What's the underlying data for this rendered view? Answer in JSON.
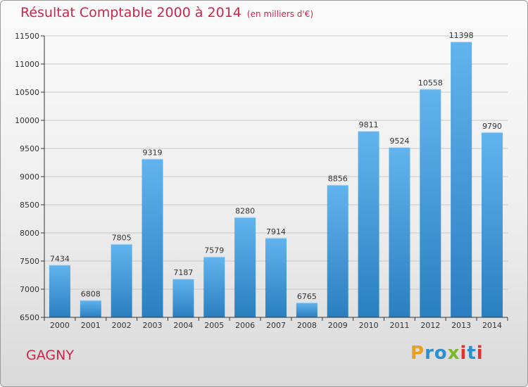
{
  "header": {
    "title": "Résultat Comptable 2000 à 2014",
    "subtitle": "(en milliers d'€)"
  },
  "footer": {
    "city": "GAGNY",
    "logo_text": "Proxiti"
  },
  "colors": {
    "title": "#c8284b",
    "bar_top": "#62b4ee",
    "bar_bottom": "#2a7fc0",
    "grid": "#c8c8c8"
  },
  "chart_data": {
    "type": "bar",
    "title": "Résultat Comptable 2000 à 2014",
    "subtitle": "(en milliers d'€)",
    "categories": [
      "2000",
      "2001",
      "2002",
      "2003",
      "2004",
      "2005",
      "2006",
      "2007",
      "2008",
      "2009",
      "2010",
      "2011",
      "2012",
      "2013",
      "2014"
    ],
    "values": [
      7434,
      6808,
      7805,
      9319,
      7187,
      7579,
      8280,
      7914,
      6765,
      8856,
      9811,
      9524,
      10558,
      11398,
      9790
    ],
    "ylim": [
      6500,
      11500
    ],
    "yticks": [
      6500,
      7000,
      7500,
      8000,
      8500,
      9000,
      9500,
      10000,
      10500,
      11000,
      11500
    ],
    "xlabel": "",
    "ylabel": "",
    "grid": true,
    "legend": "none"
  }
}
